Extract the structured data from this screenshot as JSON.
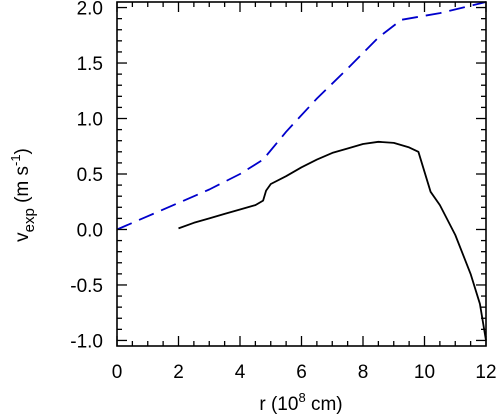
{
  "chart_data": {
    "type": "line",
    "xlabel": "r (10",
    "xlabel_exponent": "8",
    "xlabel_unit": " cm)",
    "ylabel": "v",
    "ylabel_subscript": "exp",
    "ylabel_unit": " (m s",
    "ylabel_exponent": "-1",
    "ylabel_close": ")",
    "xlim": [
      0,
      12
    ],
    "ylim": [
      -1.05,
      2.05
    ],
    "xticks": [
      0,
      2,
      4,
      6,
      8,
      10,
      12
    ],
    "yticks": [
      -1.0,
      -0.5,
      0.0,
      0.5,
      1.0,
      1.5,
      2.0
    ],
    "xtick_labels": [
      "0",
      "2",
      "4",
      "6",
      "8",
      "10",
      "12"
    ],
    "ytick_labels": [
      "-1.0",
      "-0.5",
      "0.0",
      "0.5",
      "1.0",
      "1.5",
      "2.0"
    ],
    "grid": false,
    "series": [
      {
        "style": "solid",
        "color": "#000000",
        "x": [
          2.0,
          2.5,
          3.0,
          3.5,
          4.0,
          4.5,
          4.75,
          4.85,
          5.0,
          5.5,
          6.0,
          6.5,
          7.0,
          7.5,
          8.0,
          8.5,
          9.0,
          9.5,
          9.8,
          10.0,
          10.2,
          10.5,
          11.0,
          11.5,
          11.8,
          12.0
        ],
        "y": [
          0.01,
          0.06,
          0.1,
          0.14,
          0.18,
          0.22,
          0.26,
          0.35,
          0.41,
          0.48,
          0.56,
          0.63,
          0.69,
          0.73,
          0.77,
          0.79,
          0.78,
          0.74,
          0.7,
          0.52,
          0.34,
          0.22,
          -0.05,
          -0.4,
          -0.67,
          -1.0
        ]
      },
      {
        "style": "dashed",
        "color": "#0000cc",
        "x": [
          0.0,
          1.0,
          2.0,
          3.0,
          4.0,
          4.75,
          5.5,
          6.5,
          7.5,
          8.5,
          9.25,
          10.5,
          12.0
        ],
        "y": [
          0.0,
          0.12,
          0.24,
          0.36,
          0.5,
          0.63,
          0.88,
          1.18,
          1.45,
          1.73,
          1.89,
          1.95,
          2.05
        ]
      }
    ]
  }
}
